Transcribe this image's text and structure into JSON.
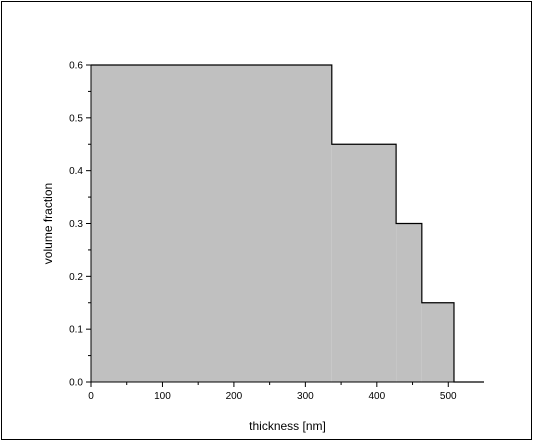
{
  "chart_data": {
    "type": "area",
    "subtype": "step",
    "title": "",
    "xlabel": "thickness [nm]",
    "ylabel": "volume fraction",
    "xlim": [
      0,
      550
    ],
    "ylim": [
      0,
      0.6
    ],
    "xticks": [
      0,
      100,
      200,
      300,
      400,
      500
    ],
    "yticks": [
      0.0,
      0.1,
      0.2,
      0.3,
      0.4,
      0.5,
      0.6
    ],
    "xtick_labels": [
      "0",
      "100",
      "200",
      "300",
      "400",
      "500"
    ],
    "ytick_labels": [
      "0.0",
      "0.1",
      "0.2",
      "0.3",
      "0.4",
      "0.5",
      "0.6"
    ],
    "grid": false,
    "legend": "none",
    "series": [
      {
        "steps": [
          {
            "x_start": 0,
            "x_end": 337,
            "y": 0.6
          },
          {
            "x_start": 337,
            "x_end": 427,
            "y": 0.45
          },
          {
            "x_start": 427,
            "x_end": 463,
            "y": 0.3
          },
          {
            "x_start": 463,
            "x_end": 508,
            "y": 0.15
          },
          {
            "x_start": 508,
            "x_end": 550,
            "y": 0.0
          }
        ]
      }
    ],
    "colors": {
      "fill": "#c0c0c0",
      "line": "#000000"
    }
  }
}
